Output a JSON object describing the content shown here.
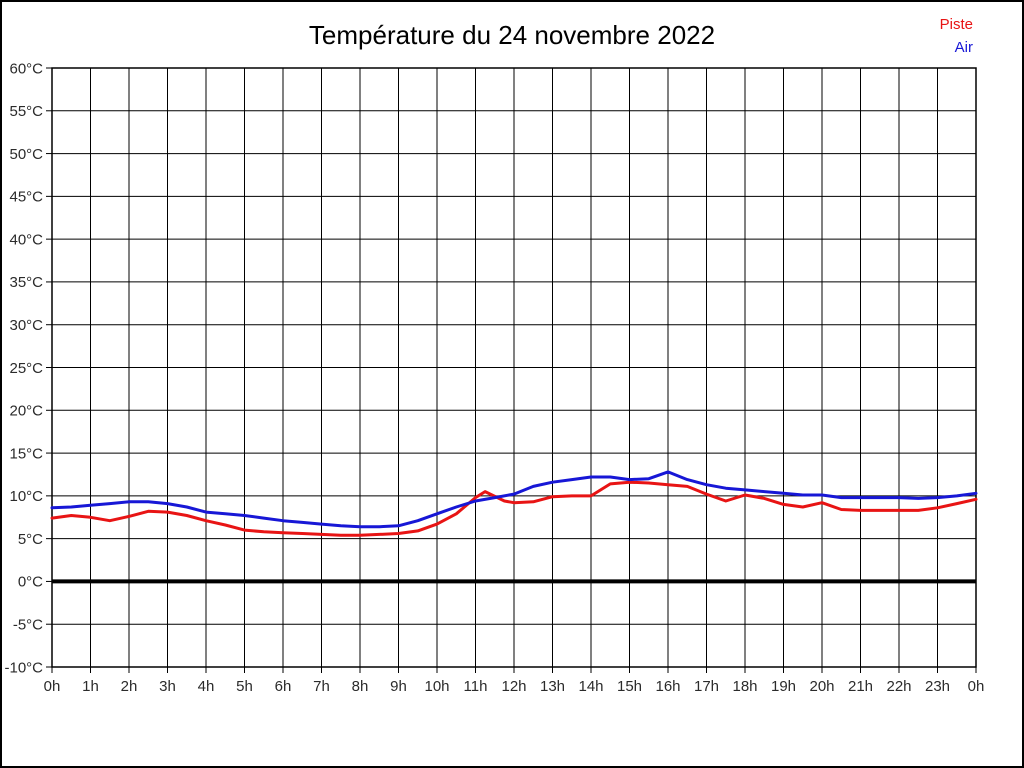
{
  "title": "Température du 24 novembre 2022",
  "legend": {
    "piste_label": "Piste",
    "air_label": "Air"
  },
  "colors": {
    "piste": "#e81414",
    "air": "#1717d6",
    "grid": "#000000",
    "zero_line": "#000000",
    "tick_text": "#2b2b2b"
  },
  "chart_data": {
    "type": "line",
    "title": "Température du 24 novembre 2022",
    "xlabel": "",
    "ylabel": "",
    "xlim": [
      0,
      24
    ],
    "ylim": [
      -10,
      60
    ],
    "grid": true,
    "legend_position": "top-right",
    "x_ticks": [
      0,
      1,
      2,
      3,
      4,
      5,
      6,
      7,
      8,
      9,
      10,
      11,
      12,
      13,
      14,
      15,
      16,
      17,
      18,
      19,
      20,
      21,
      22,
      23,
      24
    ],
    "x_tick_labels": [
      "0h",
      "1h",
      "2h",
      "3h",
      "4h",
      "5h",
      "6h",
      "7h",
      "8h",
      "9h",
      "10h",
      "11h",
      "12h",
      "13h",
      "14h",
      "15h",
      "16h",
      "17h",
      "18h",
      "19h",
      "20h",
      "21h",
      "22h",
      "23h",
      "0h"
    ],
    "y_ticks": [
      60,
      55,
      50,
      45,
      40,
      35,
      30,
      25,
      20,
      15,
      10,
      5,
      0,
      -5,
      -10
    ],
    "y_tick_labels": [
      "60°C",
      "55°C",
      "50°C",
      "45°C",
      "40°C",
      "35°C",
      "30°C",
      "25°C",
      "20°C",
      "15°C",
      "10°C",
      "5°C",
      "0°C",
      "-5°C",
      "-10°C"
    ],
    "zero_line": {
      "value": 0,
      "width": 4
    },
    "series": [
      {
        "name": "Piste",
        "color": "#e81414",
        "points": [
          [
            0,
            7.4
          ],
          [
            0.5,
            7.7
          ],
          [
            1,
            7.5
          ],
          [
            1.5,
            7.1
          ],
          [
            2,
            7.6
          ],
          [
            2.5,
            8.2
          ],
          [
            3,
            8.1
          ],
          [
            3.5,
            7.7
          ],
          [
            4,
            7.1
          ],
          [
            4.5,
            6.6
          ],
          [
            5,
            6.0
          ],
          [
            5.5,
            5.8
          ],
          [
            6,
            5.7
          ],
          [
            6.5,
            5.6
          ],
          [
            7,
            5.5
          ],
          [
            7.5,
            5.4
          ],
          [
            8,
            5.4
          ],
          [
            8.5,
            5.5
          ],
          [
            9,
            5.6
          ],
          [
            9.5,
            5.9
          ],
          [
            10,
            6.7
          ],
          [
            10.5,
            7.9
          ],
          [
            11,
            9.8
          ],
          [
            11.25,
            10.5
          ],
          [
            11.75,
            9.4
          ],
          [
            12,
            9.2
          ],
          [
            12.5,
            9.3
          ],
          [
            13,
            9.9
          ],
          [
            13.5,
            10.0
          ],
          [
            14,
            10.0
          ],
          [
            14.5,
            11.4
          ],
          [
            15,
            11.6
          ],
          [
            15.5,
            11.5
          ],
          [
            16,
            11.3
          ],
          [
            16.5,
            11.1
          ],
          [
            17,
            10.2
          ],
          [
            17.5,
            9.4
          ],
          [
            18,
            10.1
          ],
          [
            18.5,
            9.7
          ],
          [
            19,
            9.0
          ],
          [
            19.5,
            8.7
          ],
          [
            20,
            9.2
          ],
          [
            20.5,
            8.4
          ],
          [
            21,
            8.3
          ],
          [
            21.5,
            8.3
          ],
          [
            22,
            8.3
          ],
          [
            22.5,
            8.3
          ],
          [
            23,
            8.6
          ],
          [
            23.5,
            9.1
          ],
          [
            24,
            9.6
          ]
        ]
      },
      {
        "name": "Air",
        "color": "#1717d6",
        "points": [
          [
            0,
            8.6
          ],
          [
            0.5,
            8.7
          ],
          [
            1,
            8.9
          ],
          [
            1.5,
            9.1
          ],
          [
            2,
            9.3
          ],
          [
            2.5,
            9.3
          ],
          [
            3,
            9.1
          ],
          [
            3.5,
            8.7
          ],
          [
            4,
            8.1
          ],
          [
            4.5,
            7.9
          ],
          [
            5,
            7.7
          ],
          [
            5.5,
            7.4
          ],
          [
            6,
            7.1
          ],
          [
            6.5,
            6.9
          ],
          [
            7,
            6.7
          ],
          [
            7.5,
            6.5
          ],
          [
            8,
            6.4
          ],
          [
            8.5,
            6.4
          ],
          [
            9,
            6.5
          ],
          [
            9.5,
            7.1
          ],
          [
            10,
            7.9
          ],
          [
            10.5,
            8.7
          ],
          [
            11,
            9.4
          ],
          [
            11.5,
            9.8
          ],
          [
            12,
            10.2
          ],
          [
            12.5,
            11.1
          ],
          [
            13,
            11.6
          ],
          [
            13.5,
            11.9
          ],
          [
            14,
            12.2
          ],
          [
            14.5,
            12.2
          ],
          [
            15,
            11.9
          ],
          [
            15.5,
            12.0
          ],
          [
            16,
            12.8
          ],
          [
            16.5,
            11.9
          ],
          [
            17,
            11.3
          ],
          [
            17.5,
            10.9
          ],
          [
            18,
            10.7
          ],
          [
            18.5,
            10.5
          ],
          [
            19,
            10.3
          ],
          [
            19.5,
            10.1
          ],
          [
            20,
            10.1
          ],
          [
            20.5,
            9.8
          ],
          [
            21,
            9.8
          ],
          [
            21.5,
            9.8
          ],
          [
            22,
            9.8
          ],
          [
            22.5,
            9.7
          ],
          [
            23,
            9.8
          ],
          [
            23.5,
            10.0
          ],
          [
            24,
            10.3
          ]
        ]
      }
    ]
  }
}
